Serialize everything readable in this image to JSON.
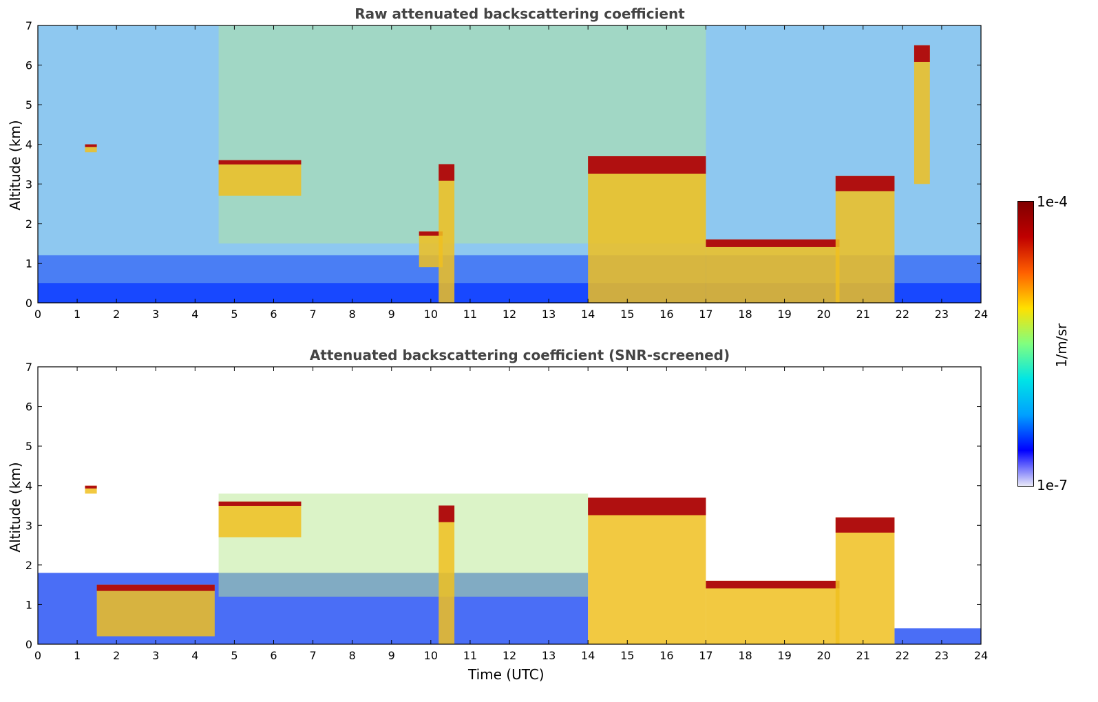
{
  "chart_data": [
    {
      "type": "heatmap",
      "title": "Raw attenuated backscattering coefficient",
      "xlabel": "",
      "ylabel": "Altitude (km)",
      "xlim": [
        0,
        24
      ],
      "ylim": [
        0,
        7
      ],
      "x_ticks": [
        "0",
        "1",
        "2",
        "3",
        "4",
        "5",
        "6",
        "7",
        "8",
        "9",
        "10",
        "11",
        "12",
        "13",
        "14",
        "15",
        "16",
        "17",
        "18",
        "19",
        "20",
        "21",
        "22",
        "23",
        "24"
      ],
      "y_ticks": [
        "0",
        "1",
        "2",
        "3",
        "4",
        "5",
        "6",
        "7"
      ],
      "features": [
        {
          "x": [
            1.2,
            1.5
          ],
          "y": [
            3.8,
            4.0
          ]
        },
        {
          "x": [
            4.6,
            6.7
          ],
          "y": [
            2.7,
            3.6
          ]
        },
        {
          "x": [
            9.7,
            10.3
          ],
          "y": [
            0.9,
            1.8
          ]
        },
        {
          "x": [
            10.2,
            10.6
          ],
          "y": [
            0,
            3.5
          ]
        },
        {
          "x": [
            14.0,
            17.0
          ],
          "y": [
            0,
            3.7
          ]
        },
        {
          "x": [
            17.0,
            20.4
          ],
          "y": [
            0,
            1.6
          ]
        },
        {
          "x": [
            20.3,
            21.8
          ],
          "y": [
            0,
            3.2
          ]
        },
        {
          "x": [
            22.3,
            22.7
          ],
          "y": [
            3.0,
            6.5
          ]
        }
      ]
    },
    {
      "type": "heatmap",
      "title": "Attenuated backscattering coefficient (SNR-screened)",
      "xlabel": "Time (UTC)",
      "ylabel": "Altitude (km)",
      "xlim": [
        0,
        24
      ],
      "ylim": [
        0,
        7
      ],
      "x_ticks": [
        "0",
        "1",
        "2",
        "3",
        "4",
        "5",
        "6",
        "7",
        "8",
        "9",
        "10",
        "11",
        "12",
        "13",
        "14",
        "15",
        "16",
        "17",
        "18",
        "19",
        "20",
        "21",
        "22",
        "23",
        "24"
      ],
      "y_ticks": [
        "0",
        "1",
        "2",
        "3",
        "4",
        "5",
        "6",
        "7"
      ],
      "features": [
        {
          "x": [
            1.2,
            1.5
          ],
          "y": [
            3.8,
            4.0
          ]
        },
        {
          "x": [
            1.5,
            4.5
          ],
          "y": [
            0.2,
            1.5
          ]
        },
        {
          "x": [
            4.6,
            6.7
          ],
          "y": [
            2.7,
            3.6
          ]
        },
        {
          "x": [
            10.2,
            10.6
          ],
          "y": [
            0,
            3.5
          ]
        },
        {
          "x": [
            14.0,
            17.0
          ],
          "y": [
            0,
            3.7
          ]
        },
        {
          "x": [
            17.0,
            20.4
          ],
          "y": [
            0,
            1.6
          ]
        },
        {
          "x": [
            20.3,
            21.8
          ],
          "y": [
            0,
            3.2
          ]
        }
      ]
    }
  ],
  "colorbar": {
    "label": "1/m/sr",
    "min_label": "1e-7",
    "max_label": "1e-4",
    "scale": "log",
    "colormap": [
      "#e8e8f8",
      "#0000ff",
      "#00a0ff",
      "#00e5e5",
      "#80ff80",
      "#ffe000",
      "#ff6000",
      "#c00000",
      "#800000"
    ]
  }
}
